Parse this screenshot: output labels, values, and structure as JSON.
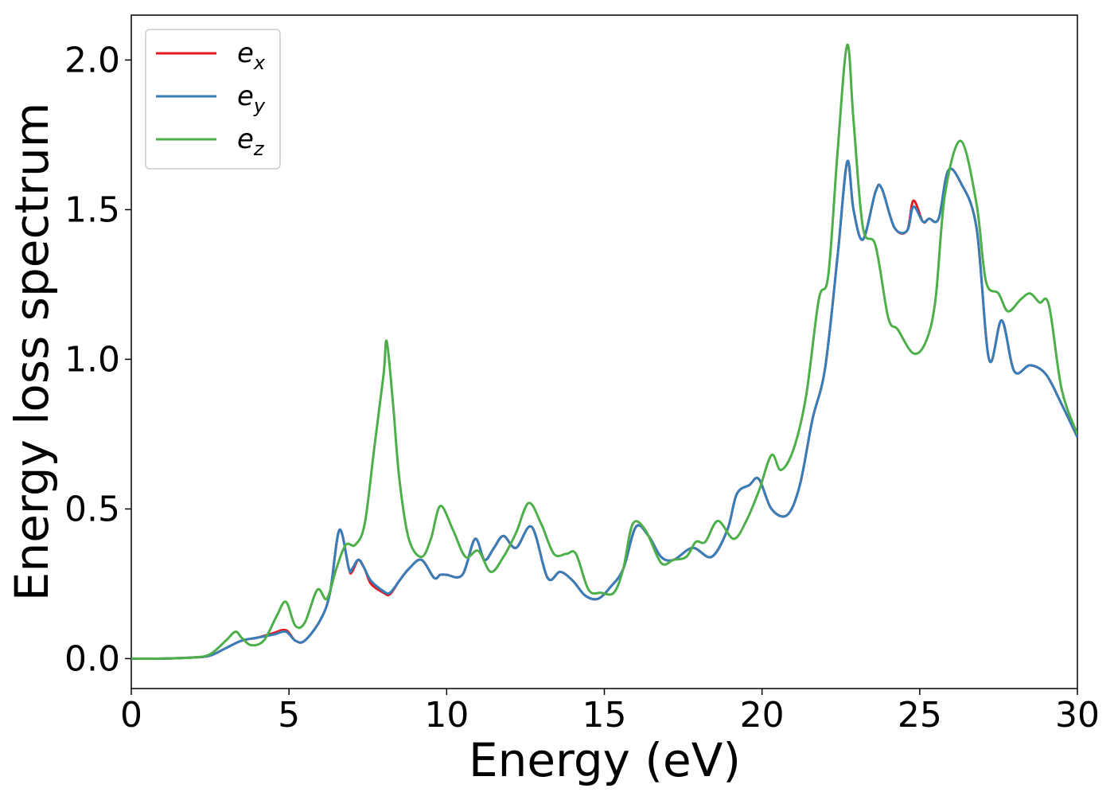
{
  "chart_data": {
    "type": "line",
    "xlabel": "Energy (eV)",
    "ylabel": "Energy loss spectrum",
    "xlim": [
      0,
      30
    ],
    "ylim": [
      -0.1,
      2.15
    ],
    "xticks": [
      "0",
      "5",
      "10",
      "15",
      "20",
      "25",
      "30"
    ],
    "yticks": [
      "0.0",
      "0.5",
      "1.0",
      "1.5",
      "2.0"
    ],
    "grid": false,
    "legend_position": "top-left",
    "series": [
      {
        "name": "e",
        "subscript": "x",
        "color": "#e41a1c",
        "points": [
          [
            0,
            0
          ],
          [
            1,
            0
          ],
          [
            2,
            0.004
          ],
          [
            2.5,
            0.01
          ],
          [
            3,
            0.035
          ],
          [
            3.5,
            0.06
          ],
          [
            4,
            0.07
          ],
          [
            4.5,
            0.085
          ],
          [
            4.9,
            0.095
          ],
          [
            5.2,
            0.06
          ],
          [
            5.5,
            0.06
          ],
          [
            6,
            0.13
          ],
          [
            6.3,
            0.22
          ],
          [
            6.6,
            0.43
          ],
          [
            6.9,
            0.3
          ],
          [
            7,
            0.29
          ],
          [
            7.2,
            0.33
          ],
          [
            7.4,
            0.3
          ],
          [
            7.6,
            0.25
          ],
          [
            8,
            0.22
          ],
          [
            8.2,
            0.215
          ],
          [
            8.5,
            0.26
          ],
          [
            8.8,
            0.3
          ],
          [
            9.2,
            0.33
          ],
          [
            9.6,
            0.27
          ],
          [
            9.8,
            0.28
          ],
          [
            10,
            0.28
          ],
          [
            10.5,
            0.28
          ],
          [
            10.9,
            0.4
          ],
          [
            11.2,
            0.33
          ],
          [
            11.5,
            0.37
          ],
          [
            11.8,
            0.41
          ],
          [
            12.2,
            0.37
          ],
          [
            12.7,
            0.44
          ],
          [
            13.2,
            0.27
          ],
          [
            13.6,
            0.29
          ],
          [
            14,
            0.26
          ],
          [
            14.4,
            0.21
          ],
          [
            14.8,
            0.2
          ],
          [
            15.2,
            0.24
          ],
          [
            15.6,
            0.3
          ],
          [
            16,
            0.44
          ],
          [
            16.4,
            0.41
          ],
          [
            16.8,
            0.34
          ],
          [
            17.2,
            0.33
          ],
          [
            17.8,
            0.37
          ],
          [
            18.4,
            0.34
          ],
          [
            18.9,
            0.43
          ],
          [
            19.2,
            0.55
          ],
          [
            19.6,
            0.58
          ],
          [
            19.9,
            0.6
          ],
          [
            20.3,
            0.5
          ],
          [
            20.8,
            0.48
          ],
          [
            21.2,
            0.58
          ],
          [
            21.6,
            0.8
          ],
          [
            22,
            0.97
          ],
          [
            22.4,
            1.35
          ],
          [
            22.7,
            1.66
          ],
          [
            22.9,
            1.5
          ],
          [
            23.2,
            1.4
          ],
          [
            23.6,
            1.56
          ],
          [
            23.8,
            1.57
          ],
          [
            24.2,
            1.44
          ],
          [
            24.6,
            1.43
          ],
          [
            24.8,
            1.53
          ],
          [
            25.1,
            1.46
          ],
          [
            25.3,
            1.47
          ],
          [
            25.6,
            1.47
          ],
          [
            25.9,
            1.63
          ],
          [
            26.3,
            1.59
          ],
          [
            26.8,
            1.44
          ],
          [
            27.2,
            1.0
          ],
          [
            27.6,
            1.13
          ],
          [
            28,
            0.96
          ],
          [
            28.5,
            0.98
          ],
          [
            29,
            0.95
          ],
          [
            29.5,
            0.85
          ],
          [
            30,
            0.74
          ]
        ]
      },
      {
        "name": "e",
        "subscript": "y",
        "color": "#377eb8",
        "points": [
          [
            0,
            0
          ],
          [
            1,
            0
          ],
          [
            2,
            0.004
          ],
          [
            2.5,
            0.01
          ],
          [
            3,
            0.035
          ],
          [
            3.5,
            0.06
          ],
          [
            4,
            0.07
          ],
          [
            4.5,
            0.08
          ],
          [
            4.9,
            0.09
          ],
          [
            5.2,
            0.06
          ],
          [
            5.5,
            0.06
          ],
          [
            6,
            0.13
          ],
          [
            6.3,
            0.22
          ],
          [
            6.6,
            0.43
          ],
          [
            6.9,
            0.3
          ],
          [
            7,
            0.3
          ],
          [
            7.2,
            0.33
          ],
          [
            7.4,
            0.3
          ],
          [
            7.6,
            0.26
          ],
          [
            8,
            0.225
          ],
          [
            8.2,
            0.22
          ],
          [
            8.5,
            0.26
          ],
          [
            8.8,
            0.3
          ],
          [
            9.2,
            0.33
          ],
          [
            9.6,
            0.27
          ],
          [
            9.8,
            0.28
          ],
          [
            10,
            0.28
          ],
          [
            10.5,
            0.28
          ],
          [
            10.9,
            0.4
          ],
          [
            11.2,
            0.33
          ],
          [
            11.5,
            0.37
          ],
          [
            11.8,
            0.41
          ],
          [
            12.2,
            0.37
          ],
          [
            12.7,
            0.44
          ],
          [
            13.2,
            0.27
          ],
          [
            13.6,
            0.29
          ],
          [
            14,
            0.26
          ],
          [
            14.4,
            0.21
          ],
          [
            14.8,
            0.2
          ],
          [
            15.2,
            0.24
          ],
          [
            15.6,
            0.3
          ],
          [
            16,
            0.44
          ],
          [
            16.4,
            0.41
          ],
          [
            16.8,
            0.34
          ],
          [
            17.2,
            0.33
          ],
          [
            17.8,
            0.37
          ],
          [
            18.4,
            0.34
          ],
          [
            18.9,
            0.43
          ],
          [
            19.2,
            0.55
          ],
          [
            19.6,
            0.58
          ],
          [
            19.9,
            0.6
          ],
          [
            20.3,
            0.5
          ],
          [
            20.8,
            0.48
          ],
          [
            21.2,
            0.58
          ],
          [
            21.6,
            0.8
          ],
          [
            22,
            0.97
          ],
          [
            22.4,
            1.35
          ],
          [
            22.7,
            1.66
          ],
          [
            22.9,
            1.5
          ],
          [
            23.2,
            1.4
          ],
          [
            23.6,
            1.56
          ],
          [
            23.8,
            1.57
          ],
          [
            24.2,
            1.44
          ],
          [
            24.6,
            1.43
          ],
          [
            24.8,
            1.51
          ],
          [
            25.1,
            1.46
          ],
          [
            25.3,
            1.47
          ],
          [
            25.6,
            1.47
          ],
          [
            25.9,
            1.63
          ],
          [
            26.3,
            1.59
          ],
          [
            26.8,
            1.44
          ],
          [
            27.2,
            1.0
          ],
          [
            27.6,
            1.13
          ],
          [
            28,
            0.96
          ],
          [
            28.5,
            0.98
          ],
          [
            29,
            0.95
          ],
          [
            29.5,
            0.85
          ],
          [
            30,
            0.74
          ]
        ]
      },
      {
        "name": "e",
        "subscript": "z",
        "color": "#4daf4a",
        "points": [
          [
            0,
            0
          ],
          [
            1,
            0
          ],
          [
            2,
            0.004
          ],
          [
            2.5,
            0.015
          ],
          [
            3,
            0.06
          ],
          [
            3.3,
            0.09
          ],
          [
            3.5,
            0.07
          ],
          [
            3.8,
            0.045
          ],
          [
            4.2,
            0.06
          ],
          [
            4.6,
            0.14
          ],
          [
            4.9,
            0.19
          ],
          [
            5.2,
            0.11
          ],
          [
            5.5,
            0.12
          ],
          [
            5.9,
            0.23
          ],
          [
            6.2,
            0.2
          ],
          [
            6.5,
            0.3
          ],
          [
            6.8,
            0.38
          ],
          [
            7.1,
            0.38
          ],
          [
            7.4,
            0.45
          ],
          [
            7.7,
            0.7
          ],
          [
            8,
            0.95
          ],
          [
            8.1,
            1.06
          ],
          [
            8.3,
            0.85
          ],
          [
            8.5,
            0.6
          ],
          [
            8.8,
            0.4
          ],
          [
            9.2,
            0.34
          ],
          [
            9.5,
            0.4
          ],
          [
            9.8,
            0.51
          ],
          [
            10.2,
            0.43
          ],
          [
            10.6,
            0.34
          ],
          [
            11,
            0.36
          ],
          [
            11.4,
            0.29
          ],
          [
            11.8,
            0.34
          ],
          [
            12.2,
            0.42
          ],
          [
            12.6,
            0.52
          ],
          [
            13,
            0.45
          ],
          [
            13.4,
            0.35
          ],
          [
            13.8,
            0.35
          ],
          [
            14.1,
            0.35
          ],
          [
            14.5,
            0.23
          ],
          [
            14.9,
            0.22
          ],
          [
            15.3,
            0.22
          ],
          [
            15.6,
            0.3
          ],
          [
            15.9,
            0.45
          ],
          [
            16.3,
            0.43
          ],
          [
            16.8,
            0.32
          ],
          [
            17.2,
            0.33
          ],
          [
            17.6,
            0.34
          ],
          [
            17.9,
            0.39
          ],
          [
            18.2,
            0.39
          ],
          [
            18.6,
            0.46
          ],
          [
            19.1,
            0.4
          ],
          [
            19.5,
            0.46
          ],
          [
            19.9,
            0.56
          ],
          [
            20.3,
            0.68
          ],
          [
            20.6,
            0.63
          ],
          [
            21,
            0.7
          ],
          [
            21.4,
            0.88
          ],
          [
            21.8,
            1.2
          ],
          [
            22.1,
            1.28
          ],
          [
            22.4,
            1.7
          ],
          [
            22.7,
            2.05
          ],
          [
            22.9,
            1.8
          ],
          [
            23.2,
            1.44
          ],
          [
            23.6,
            1.38
          ],
          [
            24,
            1.14
          ],
          [
            24.3,
            1.1
          ],
          [
            24.8,
            1.02
          ],
          [
            25.2,
            1.06
          ],
          [
            25.5,
            1.2
          ],
          [
            25.8,
            1.55
          ],
          [
            26.3,
            1.73
          ],
          [
            26.8,
            1.52
          ],
          [
            27.1,
            1.26
          ],
          [
            27.5,
            1.22
          ],
          [
            27.8,
            1.16
          ],
          [
            28.2,
            1.2
          ],
          [
            28.5,
            1.22
          ],
          [
            28.8,
            1.19
          ],
          [
            29.1,
            1.18
          ],
          [
            29.5,
            0.9
          ],
          [
            30,
            0.75
          ]
        ]
      }
    ]
  }
}
